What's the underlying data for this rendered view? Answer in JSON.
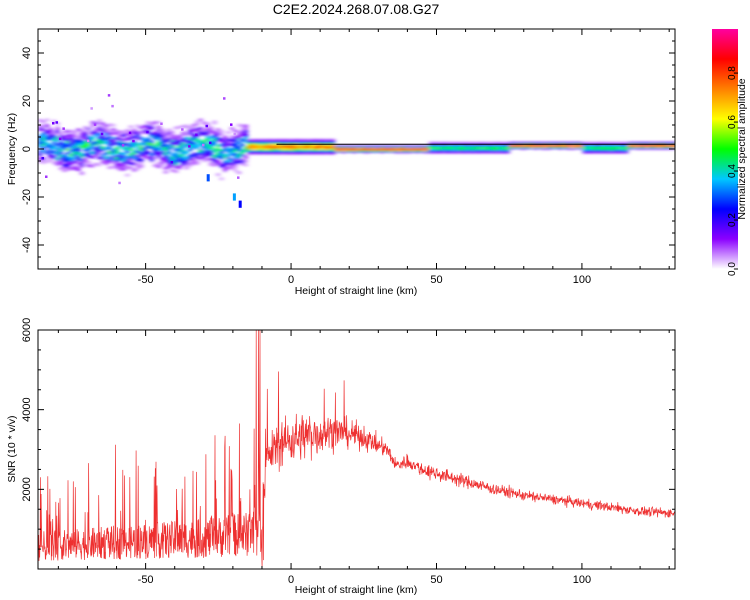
{
  "title": "C2E2.2024.268.07.08.G27",
  "colorbar": {
    "label": "Normalized spectral amplitude",
    "ticks": [
      "0.0",
      "0.2",
      "0.4",
      "0.6",
      "0.8"
    ],
    "tick_values": [
      0,
      0.2,
      0.4,
      0.6,
      0.8
    ],
    "range": [
      0,
      0.98
    ],
    "colormap": [
      "#ffffff",
      "#8b00ff",
      "#0000ff",
      "#00c8ff",
      "#00ff00",
      "#ffff00",
      "#ff8000",
      "#ff0000",
      "#ff00a0"
    ]
  },
  "chart_data": [
    {
      "type": "heatmap",
      "title": "C2E2.2024.268.07.08.G27",
      "xlabel": "Height of straight line (km)",
      "ylabel": "Frequency (Hz)",
      "xlim": [
        -87,
        132
      ],
      "ylim": [
        -50,
        50
      ],
      "x_ticks": [
        -50,
        0,
        50,
        100
      ],
      "x_tick_labels": [
        "-50",
        "0",
        "50",
        "100"
      ],
      "y_ticks": [
        -40,
        -20,
        0,
        20,
        40
      ],
      "y_tick_labels": [
        "-40",
        "-20",
        "0",
        "20",
        "40"
      ],
      "reference_line": {
        "y": 2,
        "x_start": -5,
        "x_end": 132,
        "color": "#000000"
      },
      "description_series": [
        {
          "x_start": -87,
          "x_end": -15,
          "center_freq": 1,
          "spread_hz": 7,
          "amplitude": 0.45
        },
        {
          "x_start": -15,
          "x_end": 15,
          "center_freq": 1,
          "spread_hz": 2.5,
          "amplitude": 0.8
        },
        {
          "x_start": 15,
          "x_end": 47,
          "center_freq": 0,
          "spread_hz": 1.2,
          "amplitude": 0.95
        },
        {
          "x_start": 47,
          "x_end": 75,
          "center_freq": 0.5,
          "spread_hz": 2,
          "amplitude": 0.5
        },
        {
          "x_start": 75,
          "x_end": 100,
          "center_freq": 1.5,
          "spread_hz": 1.2,
          "amplitude": 0.95
        },
        {
          "x_start": 100,
          "x_end": 115,
          "center_freq": 0.5,
          "spread_hz": 2,
          "amplitude": 0.5
        },
        {
          "x_start": 115,
          "x_end": 132,
          "center_freq": 1.5,
          "spread_hz": 1.2,
          "amplitude": 0.95
        }
      ]
    },
    {
      "type": "line",
      "xlabel": "Height of straight line (km)",
      "ylabel": "SNR (10 * v/v)",
      "xlim": [
        -87,
        132
      ],
      "ylim": [
        0,
        6000
      ],
      "x_ticks": [
        -50,
        0,
        50,
        100
      ],
      "x_tick_labels": [
        "-50",
        "0",
        "50",
        "100"
      ],
      "y_ticks": [
        2000,
        4000,
        6000
      ],
      "y_tick_labels": [
        "2000",
        "4000",
        "6000"
      ],
      "series": [
        {
          "color": "#ee3030",
          "x": [
            -87,
            -80,
            -70,
            -60,
            -50,
            -40,
            -30,
            -25,
            -20,
            -15,
            -12,
            -10,
            -8,
            -5,
            0,
            5,
            10,
            15,
            20,
            25,
            30,
            33,
            36,
            40,
            45,
            50,
            60,
            70,
            80,
            90,
            100,
            110,
            120,
            132
          ],
          "y": [
            800,
            850,
            900,
            950,
            1000,
            1050,
            1100,
            1150,
            1200,
            1250,
            1300,
            1500,
            2800,
            3100,
            3250,
            3350,
            3400,
            3450,
            3400,
            3300,
            3100,
            3000,
            2600,
            2700,
            2500,
            2400,
            2200,
            2000,
            1850,
            1750,
            1650,
            1550,
            1450,
            1400
          ],
          "noise": [
            500,
            550,
            600,
            650,
            700,
            700,
            750,
            800,
            850,
            1000,
            1200,
            1300,
            400,
            450,
            500,
            500,
            450,
            350,
            300,
            250,
            200,
            150,
            150,
            150,
            150,
            150,
            130,
            120,
            110,
            100,
            100,
            100,
            100,
            100
          ]
        }
      ]
    }
  ]
}
